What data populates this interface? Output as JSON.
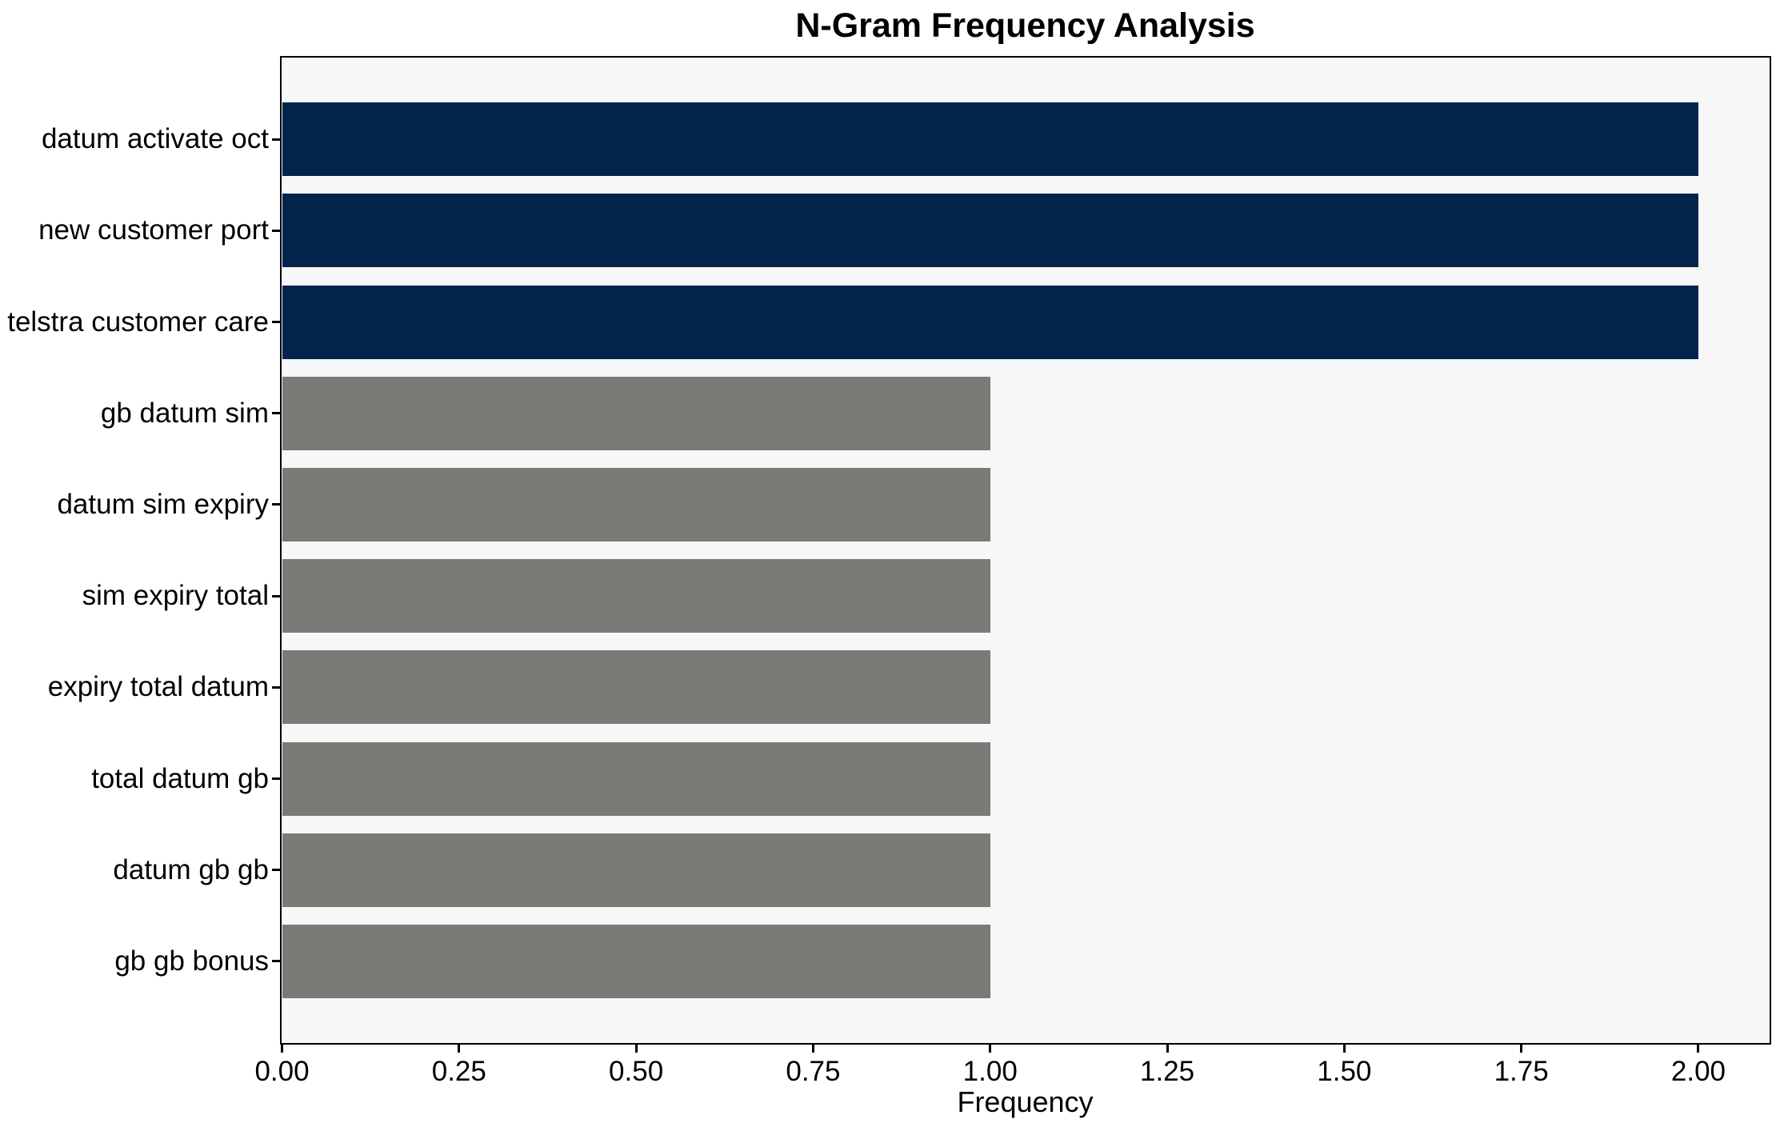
{
  "chart_data": {
    "type": "bar",
    "orientation": "horizontal",
    "title": "N-Gram Frequency Analysis",
    "xlabel": "Frequency",
    "ylabel": "",
    "categories": [
      "datum activate oct",
      "new customer port",
      "telstra customer care",
      "gb datum sim",
      "datum sim expiry",
      "sim expiry total",
      "expiry total datum",
      "total datum gb",
      "datum gb gb",
      "gb gb bonus"
    ],
    "values": [
      2,
      2,
      2,
      1,
      1,
      1,
      1,
      1,
      1,
      1
    ],
    "bar_colors": [
      "#02234c",
      "#02234c",
      "#02234c",
      "#7a7a76",
      "#7a7a76",
      "#7a7a76",
      "#7a7a76",
      "#7a7a76",
      "#7a7a76",
      "#7a7a76"
    ],
    "xlim": [
      0,
      2.1
    ],
    "x_ticks": [
      0,
      0.25,
      0.5,
      0.75,
      1.0,
      1.25,
      1.5,
      1.75,
      2.0
    ],
    "x_tick_labels": [
      "0.00",
      "0.25",
      "0.50",
      "0.75",
      "1.00",
      "1.25",
      "1.50",
      "1.75",
      "2.00"
    ],
    "grid": false,
    "legend": null,
    "colors": {
      "highlight_bar": "#02234c",
      "default_bar": "#7a7a76",
      "plot_background": "#f7f7f7",
      "figure_background": "#ffffff",
      "axis": "#000000",
      "text": "#000000"
    }
  }
}
